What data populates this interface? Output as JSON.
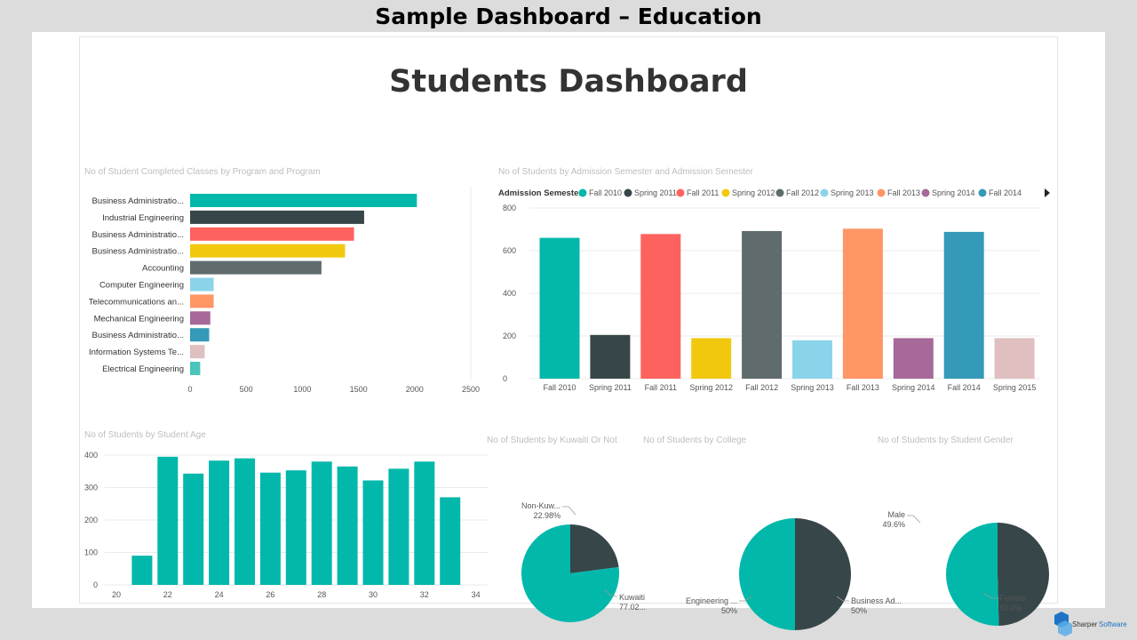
{
  "banner": {
    "title": "Sample Dashboard – Education"
  },
  "dashboard": {
    "title": "Students Dashboard"
  },
  "brand": {
    "name_part1": "Sharper",
    "name_part2": "Software"
  },
  "colors": {
    "teal": "#01b8aa",
    "dark": "#374649",
    "red": "#fd625e",
    "yellow": "#f2c80f",
    "gray": "#5f6b6d",
    "skyblue": "#8ad4eb",
    "orange": "#fe9666",
    "purple": "#a66999",
    "blue": "#3599b8",
    "pink": "#dfbfbf",
    "mint": "#4ac5bb"
  },
  "chart_data": [
    {
      "id": "program",
      "type": "bar",
      "orientation": "horizontal",
      "title": "No of Student Completed Classes by Program and Program",
      "categories": [
        "Business Administratio...",
        "Industrial Engineering",
        "Business Administratio...",
        "Business Administratio...",
        "Accounting",
        "Computer Engineering",
        "Telecommunications an...",
        "Mechanical Engineering",
        "Business Administratio...",
        "Information Systems Te...",
        "Electrical Engineering"
      ],
      "values": [
        2020,
        1550,
        1460,
        1380,
        1170,
        210,
        210,
        180,
        170,
        130,
        90
      ],
      "colors": [
        "#01b8aa",
        "#374649",
        "#fd625e",
        "#f2c80f",
        "#5f6b6d",
        "#8ad4eb",
        "#fe9666",
        "#a66999",
        "#3599b8",
        "#dfbfbf",
        "#4ac5bb"
      ],
      "xlim": [
        0,
        2500
      ],
      "xticks": [
        0,
        500,
        1000,
        1500,
        2000,
        2500
      ]
    },
    {
      "id": "admission",
      "type": "bar",
      "title": "No of Students by Admission Semester and Admission Semester",
      "legend_title": "Admission Semester",
      "legend": [
        "Fall 2010",
        "Spring 2011",
        "Fall 2011",
        "Spring 2012",
        "Fall 2012",
        "Spring 2013",
        "Fall 2013",
        "Spring 2014",
        "Fall 2014"
      ],
      "categories": [
        "Fall 2010",
        "Spring 2011",
        "Fall 2011",
        "Spring 2012",
        "Fall 2012",
        "Spring 2013",
        "Fall 2013",
        "Spring 2014",
        "Fall 2014",
        "Spring 2015"
      ],
      "values": [
        660,
        205,
        678,
        190,
        692,
        180,
        703,
        190,
        688,
        190
      ],
      "colors": [
        "#01b8aa",
        "#374649",
        "#fd625e",
        "#f2c80f",
        "#5f6b6d",
        "#8ad4eb",
        "#fe9666",
        "#a66999",
        "#3599b8",
        "#dfbfbf"
      ],
      "ylim": [
        0,
        800
      ],
      "yticks": [
        0,
        200,
        400,
        600,
        800
      ]
    },
    {
      "id": "age",
      "type": "bar",
      "title": "No of Students by Student Age",
      "x": [
        21,
        22,
        23,
        24,
        25,
        26,
        27,
        28,
        29,
        30,
        31,
        32,
        33
      ],
      "values": [
        90,
        395,
        343,
        383,
        390,
        346,
        353,
        380,
        365,
        322,
        358,
        380,
        270
      ],
      "color": "#01b8aa",
      "xlim": [
        20,
        34
      ],
      "xticks": [
        20,
        22,
        24,
        26,
        28,
        30,
        32,
        34
      ],
      "ylim": [
        0,
        400
      ],
      "yticks": [
        0,
        100,
        200,
        300,
        400
      ]
    },
    {
      "id": "kuwaiti",
      "type": "pie",
      "title": "No of Students by Kuwaiti Or Not",
      "labels": [
        "Non-Kuw...",
        "Kuwaiti"
      ],
      "percent_labels": [
        "22.98%",
        "77.02..."
      ],
      "values": [
        22.98,
        77.02
      ],
      "colors": [
        "#374649",
        "#01b8aa"
      ]
    },
    {
      "id": "college",
      "type": "pie",
      "title": "No of Students by College",
      "labels": [
        "Engineering ...",
        "Business Ad..."
      ],
      "percent_labels": [
        "50%",
        "50%"
      ],
      "values": [
        50,
        50
      ],
      "colors": [
        "#374649",
        "#01b8aa"
      ]
    },
    {
      "id": "gender",
      "type": "pie",
      "title": "No of Students by Student Gender",
      "labels": [
        "Male",
        "Female"
      ],
      "percent_labels": [
        "49.6%",
        "50.4%"
      ],
      "values": [
        49.6,
        50.4
      ],
      "colors": [
        "#374649",
        "#01b8aa"
      ]
    }
  ]
}
